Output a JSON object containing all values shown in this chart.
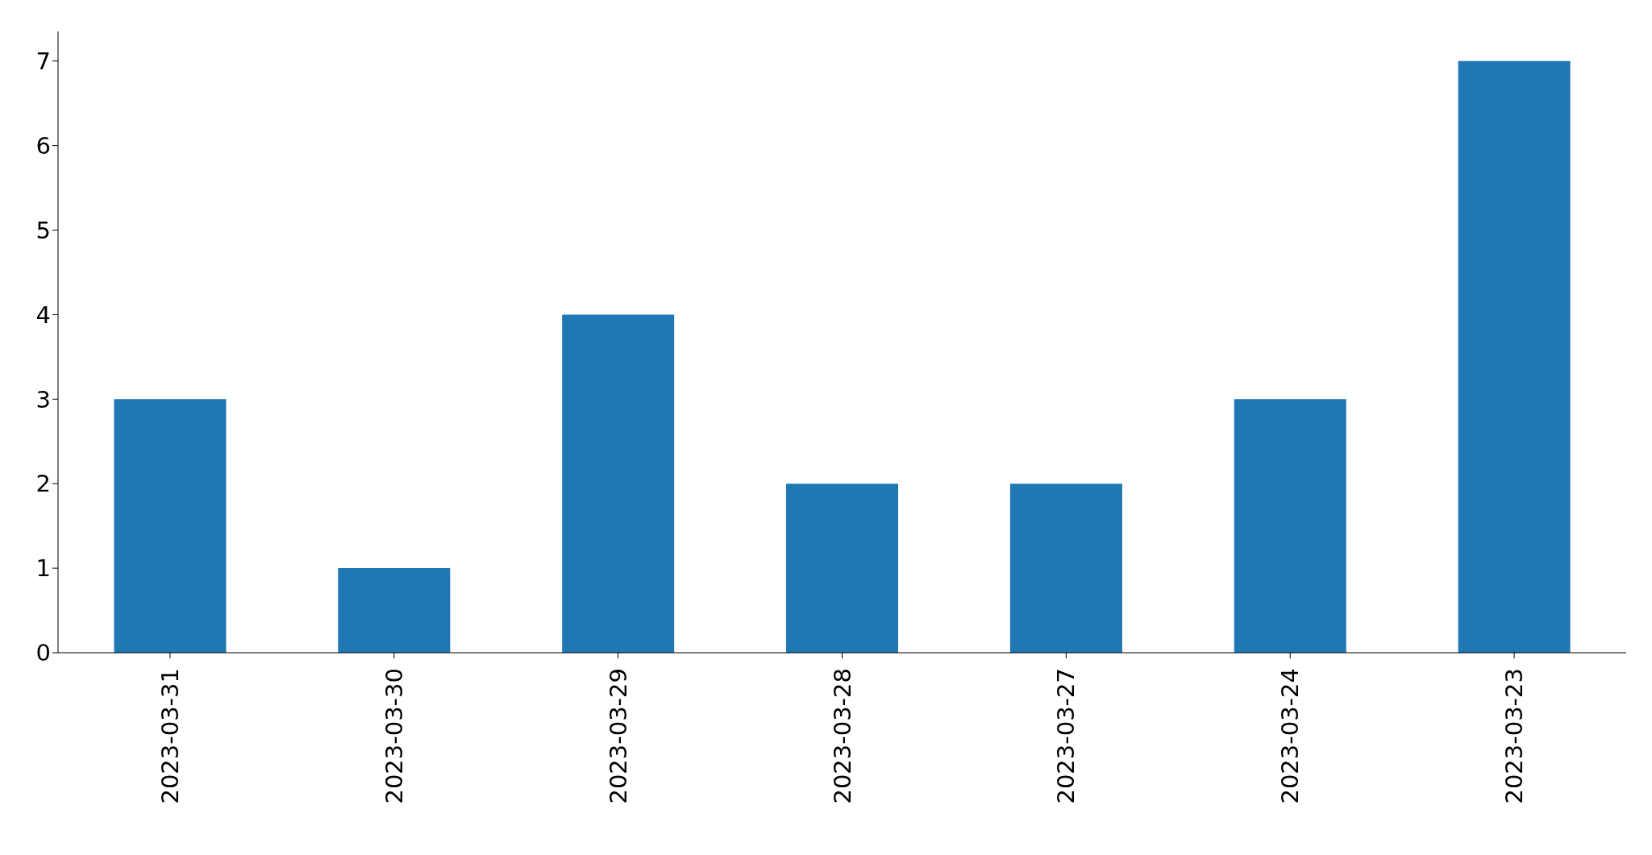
{
  "chart_data": {
    "type": "bar",
    "categories": [
      "2023-03-31",
      "2023-03-30",
      "2023-03-29",
      "2023-03-28",
      "2023-03-27",
      "2023-03-24",
      "2023-03-23"
    ],
    "values": [
      3,
      1,
      4,
      2,
      2,
      3,
      7
    ],
    "color": "#1f77b4",
    "ylim": [
      0,
      7.35
    ],
    "yticks": [
      0,
      1,
      2,
      3,
      4,
      5,
      6,
      7
    ],
    "grid": false,
    "legend": false
  }
}
